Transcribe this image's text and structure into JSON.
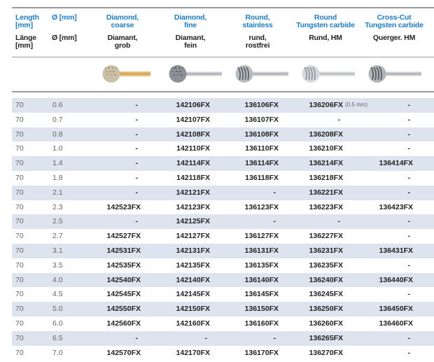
{
  "headers": {
    "length": {
      "en": [
        "Length",
        "[mm]"
      ],
      "de": [
        "Länge",
        "[mm]"
      ]
    },
    "diameter": {
      "en": "Ø [mm]",
      "de": "Ø [mm]"
    },
    "columns": [
      {
        "en": [
          "Diamond,",
          "coarse"
        ],
        "de": [
          "Diamant,",
          "grob"
        ],
        "tool": "diamond-coarse-bur"
      },
      {
        "en": [
          "Diamond,",
          "fine"
        ],
        "de": [
          "Diamant,",
          "fein"
        ],
        "tool": "diamond-fine-bur"
      },
      {
        "en": [
          "Round,",
          "stainless"
        ],
        "de": [
          "rund,",
          "rostfrei"
        ],
        "tool": "round-stainless-bur"
      },
      {
        "en": [
          "Round",
          "Tungsten carbide"
        ],
        "de": [
          "Rund, HM",
          ""
        ],
        "tool": "round-carbide-bur"
      },
      {
        "en": [
          "Cross-Cut",
          "Tungsten carbide"
        ],
        "de": [
          "Querger. HM",
          ""
        ],
        "tool": "crosscut-carbide-bur"
      }
    ]
  },
  "colors": {
    "accent": "#1f7cc0",
    "row_shade": "#dde4ef"
  },
  "rows": [
    {
      "length": "70",
      "diameter": "0.6",
      "codes": [
        "-",
        "142106FX",
        "136106FX",
        "136206FX",
        "-"
      ],
      "note": "(0.5 mm)"
    },
    {
      "length": "70",
      "diameter": "0.7",
      "codes": [
        "-",
        "142107FX",
        "136107FX",
        "-",
        "-"
      ]
    },
    {
      "length": "70",
      "diameter": "0.8",
      "codes": [
        "-",
        "142108FX",
        "136108FX",
        "136208FX",
        "-"
      ]
    },
    {
      "length": "70",
      "diameter": "1.0",
      "codes": [
        "-",
        "142110FX",
        "136110FX",
        "136210FX",
        "-"
      ]
    },
    {
      "length": "70",
      "diameter": "1.4",
      "codes": [
        "-",
        "142114FX",
        "136114FX",
        "136214FX",
        "136414FX"
      ]
    },
    {
      "length": "70",
      "diameter": "1.8",
      "codes": [
        "-",
        "142118FX",
        "136118FX",
        "136218FX",
        "-"
      ]
    },
    {
      "length": "70",
      "diameter": "2.1",
      "codes": [
        "-",
        "142121FX",
        "-",
        "136221FX",
        "-"
      ]
    },
    {
      "length": "70",
      "diameter": "2.3",
      "codes": [
        "142523FX",
        "142123FX",
        "136123FX",
        "136223FX",
        "136423FX"
      ]
    },
    {
      "length": "70",
      "diameter": "2.5",
      "codes": [
        "-",
        "142125FX",
        "-",
        "-",
        "-"
      ]
    },
    {
      "length": "70",
      "diameter": "2.7",
      "codes": [
        "142527FX",
        "142127FX",
        "136127FX",
        "136227FX",
        "-"
      ]
    },
    {
      "length": "70",
      "diameter": "3.1",
      "codes": [
        "142531FX",
        "142131FX",
        "136131FX",
        "136231FX",
        "136431FX"
      ]
    },
    {
      "length": "70",
      "diameter": "3.5",
      "codes": [
        "142535FX",
        "142135FX",
        "136135FX",
        "136235FX",
        "-"
      ]
    },
    {
      "length": "70",
      "diameter": "4.0",
      "codes": [
        "142540FX",
        "142140FX",
        "136140FX",
        "136240FX",
        "136440FX"
      ]
    },
    {
      "length": "70",
      "diameter": "4.5",
      "codes": [
        "142545FX",
        "142145FX",
        "136145FX",
        "136245FX",
        "-"
      ]
    },
    {
      "length": "70",
      "diameter": "5.0",
      "codes": [
        "142550FX",
        "142150FX",
        "136150FX",
        "136250FX",
        "136450FX"
      ]
    },
    {
      "length": "70",
      "diameter": "6.0",
      "codes": [
        "142560FX",
        "142160FX",
        "136160FX",
        "136260FX",
        "136460FX"
      ]
    },
    {
      "length": "70",
      "diameter": "6.5",
      "codes": [
        "-",
        "-",
        "-",
        "136265FX",
        "-"
      ]
    },
    {
      "length": "70",
      "diameter": "7.0",
      "codes": [
        "142570FX",
        "142170FX",
        "136170FX",
        "136270FX",
        "-"
      ]
    }
  ]
}
